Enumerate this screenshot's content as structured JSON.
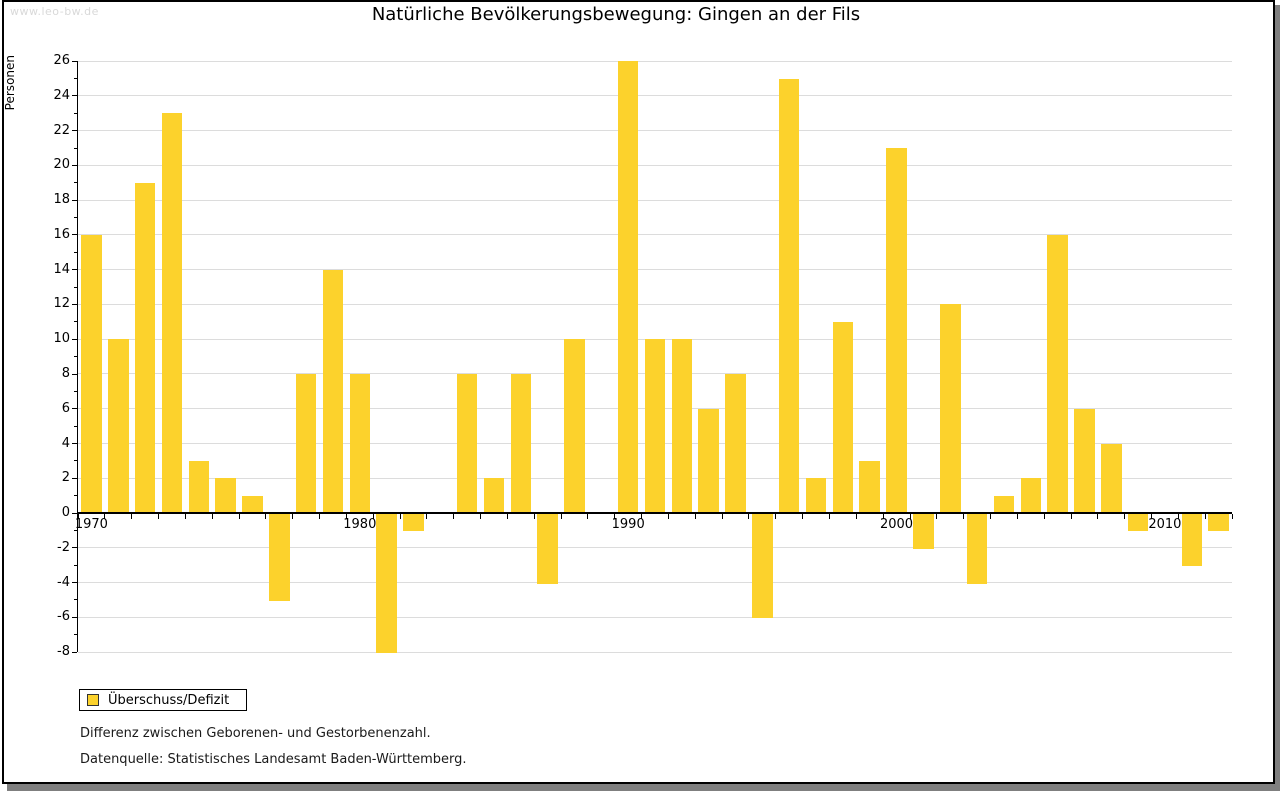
{
  "page": {
    "watermark": "www.leo-bw.de"
  },
  "chart_data": {
    "type": "bar",
    "title": "Natürliche Bevölkerungsbewegung: Gingen an der Fils",
    "xlabel": "",
    "ylabel": "Personen",
    "ylim": [
      -8,
      26
    ],
    "y_tick_step": 2,
    "grid": true,
    "legend_position": "bottom-left",
    "legend": [
      "Überschuss/Defizit"
    ],
    "bar_color": "#FCD22C",
    "categories": [
      1970,
      1971,
      1972,
      1973,
      1974,
      1975,
      1976,
      1977,
      1978,
      1979,
      1980,
      1981,
      1982,
      1983,
      1984,
      1985,
      1986,
      1987,
      1988,
      1989,
      1990,
      1991,
      1992,
      1993,
      1994,
      1995,
      1996,
      1997,
      1998,
      1999,
      2000,
      2001,
      2002,
      2003,
      2004,
      2005,
      2006,
      2007,
      2008,
      2009,
      2010,
      2011,
      2012
    ],
    "values": [
      16,
      10,
      19,
      23,
      3,
      2,
      1,
      -5,
      8,
      14,
      8,
      -8,
      -1,
      0,
      8,
      2,
      8,
      -4,
      10,
      0,
      26,
      10,
      10,
      6,
      8,
      -6,
      25,
      2,
      11,
      3,
      21,
      -2,
      12,
      -4,
      1,
      2,
      16,
      6,
      4,
      -1,
      0,
      -3,
      -1
    ],
    "x_tick_labels": [
      1970,
      1980,
      1990,
      2000,
      2010
    ],
    "footnotes": [
      "Differenz zwischen Geborenen- und Gestorbenenzahl.",
      "Datenquelle: Statistisches Landesamt Baden-Württemberg."
    ]
  }
}
